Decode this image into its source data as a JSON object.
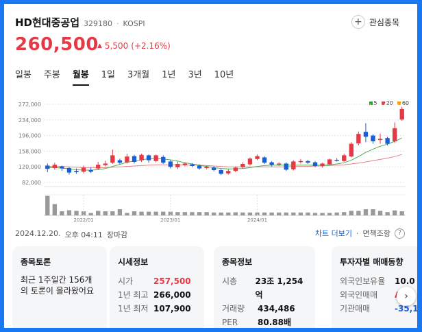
{
  "header": {
    "name": "HD현대중공업",
    "code": "329180",
    "separator": "·",
    "market": "KOSPI",
    "watch_label": "관심종목",
    "watch_icon": "plus-icon"
  },
  "quote": {
    "price": "260,500",
    "change_arrow": "▲",
    "change": "5,500",
    "change_pct": "(+2.16%)",
    "up_color": "#e63946",
    "down_color": "#1a5ed6"
  },
  "tabs": [
    "일봉",
    "주봉",
    "월봉",
    "1일",
    "3개월",
    "1년",
    "3년",
    "10년"
  ],
  "active_tab": "월봉",
  "legend": [
    "5",
    "20",
    "60"
  ],
  "chart_data": {
    "type": "candlestick",
    "ylim": [
      82000,
      272000
    ],
    "yticks": [
      "272,000",
      "234,000",
      "196,000",
      "158,000",
      "120,000",
      "82,000"
    ],
    "xticks": [
      "2022/01",
      "2023/01",
      "2024/01"
    ],
    "candles": [
      {
        "o": 123000,
        "c": 115000,
        "h": 128000,
        "l": 107000
      },
      {
        "o": 117000,
        "c": 125000,
        "h": 130000,
        "l": 113000
      },
      {
        "o": 121000,
        "c": 116000,
        "h": 123000,
        "l": 110000
      },
      {
        "o": 117000,
        "c": 106000,
        "h": 120000,
        "l": 101000
      },
      {
        "o": 110000,
        "c": 107000,
        "h": 116000,
        "l": 103000
      },
      {
        "o": 108000,
        "c": 118000,
        "h": 123000,
        "l": 104000
      },
      {
        "o": 112000,
        "c": 108000,
        "h": 118000,
        "l": 105000
      },
      {
        "o": 116000,
        "c": 125000,
        "h": 132000,
        "l": 112000
      },
      {
        "o": 124000,
        "c": 128000,
        "h": 135000,
        "l": 121000
      },
      {
        "o": 130000,
        "c": 148000,
        "h": 162000,
        "l": 127000
      },
      {
        "o": 136000,
        "c": 130000,
        "h": 140000,
        "l": 126000
      },
      {
        "o": 131000,
        "c": 145000,
        "h": 152000,
        "l": 128000
      },
      {
        "o": 146000,
        "c": 132000,
        "h": 149000,
        "l": 128000
      },
      {
        "o": 136000,
        "c": 149000,
        "h": 152000,
        "l": 132000
      },
      {
        "o": 148000,
        "c": 136000,
        "h": 150000,
        "l": 130000
      },
      {
        "o": 134000,
        "c": 148000,
        "h": 150000,
        "l": 131000
      },
      {
        "o": 144000,
        "c": 130000,
        "h": 148000,
        "l": 127000
      },
      {
        "o": 133000,
        "c": 120000,
        "h": 136000,
        "l": 116000
      },
      {
        "o": 119000,
        "c": 127000,
        "h": 133000,
        "l": 115000
      },
      {
        "o": 124000,
        "c": 128000,
        "h": 131000,
        "l": 121000
      },
      {
        "o": 126000,
        "c": 122000,
        "h": 129000,
        "l": 119000
      },
      {
        "o": 123000,
        "c": 116000,
        "h": 126000,
        "l": 113000
      },
      {
        "o": 117000,
        "c": 120000,
        "h": 123000,
        "l": 114000
      },
      {
        "o": 118000,
        "c": 112000,
        "h": 121000,
        "l": 109000
      },
      {
        "o": 112000,
        "c": 103000,
        "h": 115000,
        "l": 100000
      },
      {
        "o": 104000,
        "c": 110000,
        "h": 114000,
        "l": 101000
      },
      {
        "o": 110000,
        "c": 118000,
        "h": 121000,
        "l": 107000
      },
      {
        "o": 119000,
        "c": 127000,
        "h": 131000,
        "l": 116000
      },
      {
        "o": 126000,
        "c": 140000,
        "h": 143000,
        "l": 123000
      },
      {
        "o": 139000,
        "c": 146000,
        "h": 150000,
        "l": 136000
      },
      {
        "o": 143000,
        "c": 130000,
        "h": 146000,
        "l": 127000
      },
      {
        "o": 131000,
        "c": 125000,
        "h": 134000,
        "l": 121000
      },
      {
        "o": 126000,
        "c": 128000,
        "h": 131000,
        "l": 122000
      },
      {
        "o": 128000,
        "c": 113000,
        "h": 131000,
        "l": 110000
      },
      {
        "o": 114000,
        "c": 133000,
        "h": 136000,
        "l": 111000
      },
      {
        "o": 133000,
        "c": 134000,
        "h": 139000,
        "l": 128000
      },
      {
        "o": 134000,
        "c": 130000,
        "h": 137000,
        "l": 127000
      },
      {
        "o": 131000,
        "c": 122000,
        "h": 134000,
        "l": 119000
      },
      {
        "o": 122000,
        "c": 128000,
        "h": 130000,
        "l": 118000
      },
      {
        "o": 126000,
        "c": 138000,
        "h": 140000,
        "l": 124000
      },
      {
        "o": 137000,
        "c": 135000,
        "h": 141000,
        "l": 133000
      },
      {
        "o": 134000,
        "c": 148000,
        "h": 152000,
        "l": 132000
      },
      {
        "o": 145000,
        "c": 176000,
        "h": 180000,
        "l": 143000
      },
      {
        "o": 177000,
        "c": 200000,
        "h": 206000,
        "l": 172000
      },
      {
        "o": 205000,
        "c": 193000,
        "h": 226000,
        "l": 180000
      },
      {
        "o": 196000,
        "c": 182000,
        "h": 199000,
        "l": 176000
      },
      {
        "o": 185000,
        "c": 188000,
        "h": 201000,
        "l": 176000
      },
      {
        "o": 190000,
        "c": 176000,
        "h": 193000,
        "l": 172000
      },
      {
        "o": 182000,
        "c": 214000,
        "h": 228000,
        "l": 178000
      },
      {
        "o": 235000,
        "c": 260500,
        "h": 266000,
        "l": 232000
      }
    ],
    "volume": [
      0.95,
      0.55,
      0.2,
      0.25,
      0.22,
      0.2,
      0.12,
      0.22,
      0.2,
      0.2,
      0.3,
      0.12,
      0.2,
      0.18,
      0.18,
      0.18,
      0.18,
      0.18,
      0.16,
      0.16,
      0.16,
      0.16,
      0.16,
      0.14,
      0.14,
      0.14,
      0.15,
      0.14,
      0.14,
      0.14,
      0.14,
      0.14,
      0.14,
      0.14,
      0.14,
      0.14,
      0.14,
      0.12,
      0.12,
      0.12,
      0.14,
      0.16,
      0.22,
      0.22,
      0.3,
      0.3,
      0.22,
      0.16,
      0.24,
      0.2
    ],
    "ma_green": [
      118000,
      118000,
      117000,
      115000,
      113000,
      112000,
      112000,
      113000,
      116000,
      121000,
      126000,
      131000,
      134000,
      137000,
      140000,
      140000,
      139000,
      137000,
      134000,
      130000,
      127000,
      124000,
      121000,
      118000,
      116000,
      115000,
      115000,
      116000,
      118000,
      121000,
      123000,
      124000,
      124000,
      124000,
      124000,
      124000,
      124000,
      124000,
      124000,
      125000,
      127000,
      130000,
      136000,
      145000,
      155000,
      163000,
      170000,
      175000,
      182000,
      190000
    ],
    "ma_red": [
      121000,
      121000,
      121000,
      120000,
      119000,
      118000,
      118000,
      118000,
      118000,
      119000,
      120000,
      121000,
      122000,
      123000,
      124000,
      125000,
      125000,
      125000,
      125000,
      125000,
      124000,
      124000,
      123000,
      122000,
      121000,
      120000,
      120000,
      120000,
      120000,
      120000,
      120000,
      120000,
      120000,
      120000,
      121000,
      121000,
      121000,
      122000,
      122000,
      123000,
      124000,
      125000,
      127000,
      129000,
      132000,
      135000,
      138000,
      141000,
      145000,
      150000
    ]
  },
  "meta": {
    "date": "2024.12.20.",
    "time": "오후 04:11",
    "status": "장마감",
    "chart_link": "차트 더보기",
    "sep": "·",
    "disclaimer": "면책조항",
    "help_icon": "question-icon"
  },
  "cards": {
    "forum": {
      "title": "종목토론",
      "text": "최근 1주일간 156개의 토론이 올라왔어요"
    },
    "market": {
      "title": "시세정보",
      "rows": [
        {
          "k": "시가",
          "v": "257,500"
        },
        {
          "k": "1년 최고",
          "v": "266,000"
        },
        {
          "k": "1년 최저",
          "v": "107,900"
        }
      ]
    },
    "info": {
      "title": "종목정보",
      "rows": [
        {
          "k": "시총",
          "v": "23조 1,254억"
        },
        {
          "k": "거래량",
          "v": "434,486"
        },
        {
          "k": "PER",
          "v": "80.88배"
        }
      ]
    },
    "investor": {
      "title": "투자자별 매매동향",
      "rows": [
        {
          "k": "외국인보유율",
          "v": "10.0"
        },
        {
          "k": "외국인매매",
          "v": "A"
        },
        {
          "k": "기관매매",
          "v": "-35,1"
        }
      ]
    }
  },
  "next_icon": "chevron-right-icon"
}
